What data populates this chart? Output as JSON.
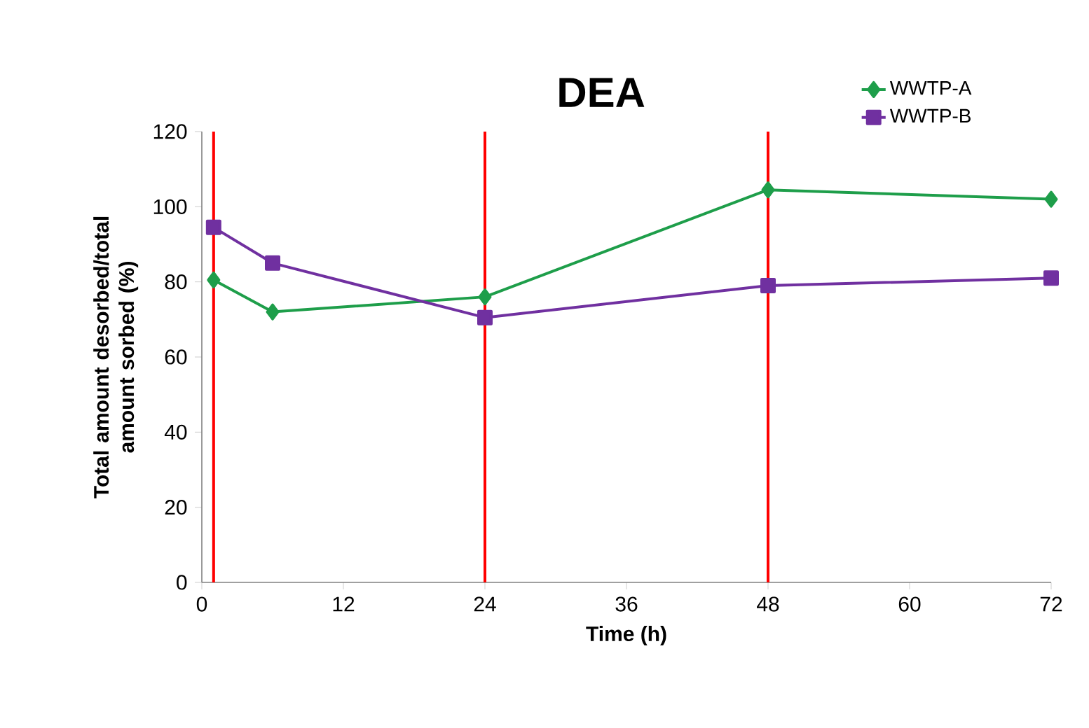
{
  "chart_data": {
    "type": "line",
    "title": "DEA",
    "xlabel": "Time (h)",
    "ylabel": "Total amount desorbed/total amount sorbed (%)",
    "x": [
      1,
      6,
      24,
      48,
      72
    ],
    "series": [
      {
        "name": "WWTP-A",
        "color": "#1e9e4a",
        "marker": "diamond",
        "values": [
          80.5,
          72,
          76,
          104.5,
          102
        ]
      },
      {
        "name": "WWTP-B",
        "color": "#7030a0",
        "marker": "square",
        "values": [
          94.5,
          85,
          70.5,
          79,
          81
        ]
      }
    ],
    "xlim": [
      0,
      72
    ],
    "xticks": [
      0,
      12,
      24,
      36,
      48,
      60,
      72
    ],
    "ylim": [
      0,
      120
    ],
    "yticks": [
      0,
      20,
      40,
      60,
      80,
      100,
      120
    ],
    "ref_lines": [
      {
        "axis": "x",
        "value": 1,
        "color": "#ff0000"
      },
      {
        "axis": "x",
        "value": 24,
        "color": "#ff0000"
      },
      {
        "axis": "x",
        "value": 48,
        "color": "#ff0000"
      }
    ],
    "legend": "top right",
    "grid": false,
    "line_style": "solid"
  }
}
